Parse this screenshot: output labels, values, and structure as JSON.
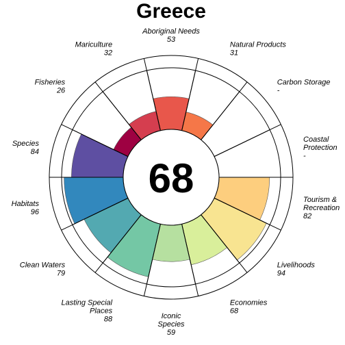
{
  "chart_data": {
    "type": "flower",
    "title": "Greece",
    "center_score": "68",
    "ylim": [
      0,
      100
    ],
    "petals": [
      {
        "label": [
          "Fisheries"
        ],
        "score_text": "26",
        "value": 26,
        "color": "#9E0142"
      },
      {
        "label": [
          "Mariculture"
        ],
        "score_text": "32",
        "value": 32,
        "color": "#D53E4F"
      },
      {
        "label": [
          "Aboriginal Needs"
        ],
        "score_text": "53",
        "value": 53,
        "color": "#E8574B"
      },
      {
        "label": [
          "Natural Products"
        ],
        "score_text": "31",
        "value": 31,
        "color": "#F57748"
      },
      {
        "label": [
          "Carbon Storage"
        ],
        "score_text": "-",
        "value": null,
        "color": "#F99555"
      },
      {
        "label": [
          "Coastal",
          "Protection"
        ],
        "score_text": "-",
        "value": null,
        "color": "#FDB567"
      },
      {
        "label": [
          "Tourism &",
          "Recreation"
        ],
        "score_text": "82",
        "value": 82,
        "color": "#FDCE7E"
      },
      {
        "label": [
          "Livelihoods"
        ],
        "score_text": "94",
        "value": 94,
        "color": "#F8E491"
      },
      {
        "label": [
          "Economies"
        ],
        "score_text": "68",
        "value": 68,
        "color": "#D9EF9B"
      },
      {
        "label": [
          "Iconic",
          "Species"
        ],
        "score_text": "59",
        "value": 59,
        "color": "#B6E0A0"
      },
      {
        "label": [
          "Lasting Special",
          "Places"
        ],
        "score_text": "88",
        "value": 88,
        "color": "#74C7A5"
      },
      {
        "label": [
          "Clean Waters"
        ],
        "score_text": "79",
        "value": 79,
        "color": "#53A9B1"
      },
      {
        "label": [
          "Habitats"
        ],
        "score_text": "96",
        "value": 96,
        "color": "#3288BD"
      },
      {
        "label": [
          "Species"
        ],
        "score_text": "84",
        "value": 84,
        "color": "#5E4FA2"
      }
    ]
  }
}
